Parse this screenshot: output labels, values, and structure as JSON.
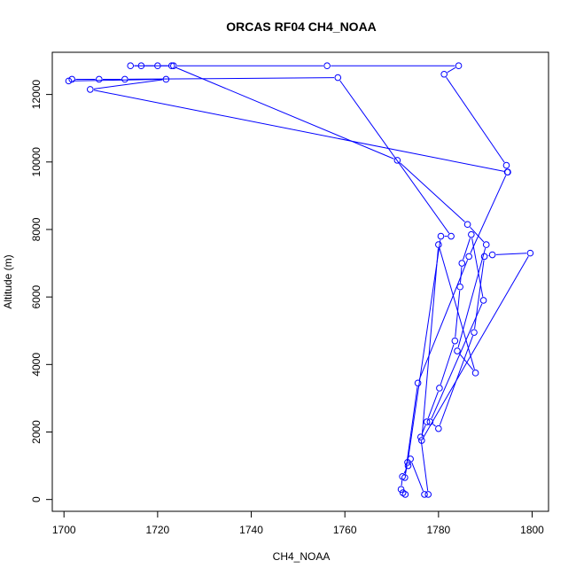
{
  "chart_data": {
    "type": "line",
    "title": "ORCAS RF04 CH4_NOAA",
    "xlabel": "CH4_NOAA",
    "ylabel": "Altitude (m)",
    "xlim": [
      1697.5,
      1803.5
    ],
    "ylim": [
      -350,
      13250
    ],
    "xticks": [
      1700,
      1720,
      1740,
      1760,
      1780,
      1800
    ],
    "yticks": [
      0,
      2000,
      4000,
      6000,
      8000,
      10000,
      12000
    ],
    "grid": false,
    "legend": "none",
    "series_color": "#0000ff",
    "marker": "open-circle",
    "series": [
      {
        "points": [
          [
            1772.9,
            150
          ],
          [
            1772.4,
            200
          ],
          [
            1772.0,
            300
          ],
          [
            1772.3,
            680
          ],
          [
            1773.5,
            1000
          ],
          [
            1774.0,
            1200
          ],
          [
            1777.0,
            150
          ],
          [
            1777.8,
            150
          ],
          [
            1776.2,
            1850
          ],
          [
            1777.5,
            2300
          ],
          [
            1780.2,
            3300
          ],
          [
            1783.5,
            4700
          ],
          [
            1784.6,
            6300
          ],
          [
            1785.0,
            7000
          ],
          [
            1787.0,
            7850
          ],
          [
            1789.6,
            5900
          ],
          [
            1778.2,
            2300
          ],
          [
            1780.0,
            2100
          ],
          [
            1787.6,
            4950
          ],
          [
            1789.8,
            7200
          ],
          [
            1791.5,
            7250
          ],
          [
            1799.6,
            7300
          ],
          [
            1776.4,
            1750
          ],
          [
            1780.0,
            7550
          ],
          [
            1787.9,
            3750
          ],
          [
            1784.0,
            4400
          ],
          [
            1790.2,
            7550
          ],
          [
            1786.2,
            8150
          ],
          [
            1771.2,
            10050
          ],
          [
            1723.0,
            12850
          ],
          [
            1714.2,
            12850
          ],
          [
            1716.5,
            12850
          ],
          [
            1720.0,
            12850
          ],
          [
            1723.4,
            12850
          ],
          [
            1756.2,
            12850
          ],
          [
            1784.3,
            12850
          ],
          [
            1781.2,
            12600
          ],
          [
            1794.5,
            9900
          ],
          [
            1794.7,
            9700
          ],
          [
            1786.5,
            7200
          ],
          [
            1775.6,
            3450
          ],
          [
            1772.8,
            650
          ],
          [
            1773.4,
            1100
          ],
          [
            1780.5,
            7800
          ],
          [
            1782.7,
            7800
          ],
          [
            1758.5,
            12500
          ],
          [
            1713.0,
            12450
          ],
          [
            1707.5,
            12450
          ],
          [
            1701.7,
            12450
          ],
          [
            1701.0,
            12400
          ],
          [
            1721.8,
            12450
          ],
          [
            1705.6,
            12150
          ],
          [
            1794.8,
            9700
          ]
        ]
      }
    ]
  }
}
